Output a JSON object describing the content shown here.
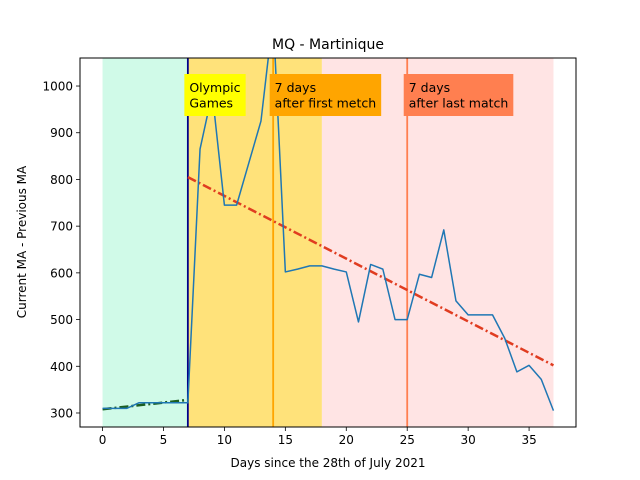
{
  "chart_data": {
    "type": "line",
    "title": "MQ - Martinique",
    "xlabel": "Days since the 28th of July 2021",
    "ylabel": "Current MA - Previous MA",
    "xlim": [
      -1.85,
      38.85
    ],
    "ylim": [
      270,
      1060
    ],
    "xticks": [
      0,
      5,
      10,
      15,
      20,
      25,
      30,
      35
    ],
    "yticks": [
      300,
      400,
      500,
      600,
      700,
      800,
      900,
      1000
    ],
    "grid": false,
    "regions": [
      {
        "x0": 0,
        "x1": 7,
        "color": "#d0fae8"
      },
      {
        "x0": 7,
        "x1": 18,
        "color": "#ffe27a"
      },
      {
        "x0": 18,
        "x1": 37,
        "color": "#ffe4e4"
      }
    ],
    "vlines": [
      {
        "x": 7,
        "color": "#00008b"
      },
      {
        "x": 14,
        "color": "#ffa500"
      },
      {
        "x": 25,
        "color": "#ff7f50"
      }
    ],
    "annotations": [
      {
        "lines": [
          "Olympic",
          "Games"
        ],
        "x": 7,
        "color": "#ffff00"
      },
      {
        "lines": [
          "7 days",
          "after first metch"
        ],
        "x": 14,
        "color": "#ffa500"
      },
      {
        "lines": [
          "7 days",
          "after last match"
        ],
        "x": 25,
        "color": "#ff7f50"
      }
    ],
    "series": [
      {
        "color": "#1f77b4",
        "x": [
          0,
          1,
          2,
          3,
          4,
          5,
          6,
          7,
          8,
          9,
          10,
          11,
          12,
          13,
          14,
          15,
          16,
          17,
          18,
          19,
          20,
          21,
          22,
          23,
          24,
          25,
          26,
          27,
          28,
          29,
          30,
          31,
          32,
          33,
          34,
          35,
          36,
          37
        ],
        "values": [
          310,
          310,
          310,
          322,
          322,
          322,
          322,
          322,
          865,
          985,
          745,
          745,
          835,
          925,
          1150,
          602,
          608,
          615,
          615,
          608,
          602,
          495,
          618,
          608,
          500,
          500,
          597,
          590,
          692,
          540,
          510,
          510,
          510,
          460,
          388,
          402,
          372,
          305
        ]
      }
    ],
    "trendlines": [
      {
        "x": [
          0,
          7
        ],
        "values": [
          308,
          328
        ],
        "color": "#1b5e20"
      },
      {
        "x": [
          7,
          37
        ],
        "values": [
          805,
          402
        ],
        "color": "#e03c20"
      }
    ]
  }
}
